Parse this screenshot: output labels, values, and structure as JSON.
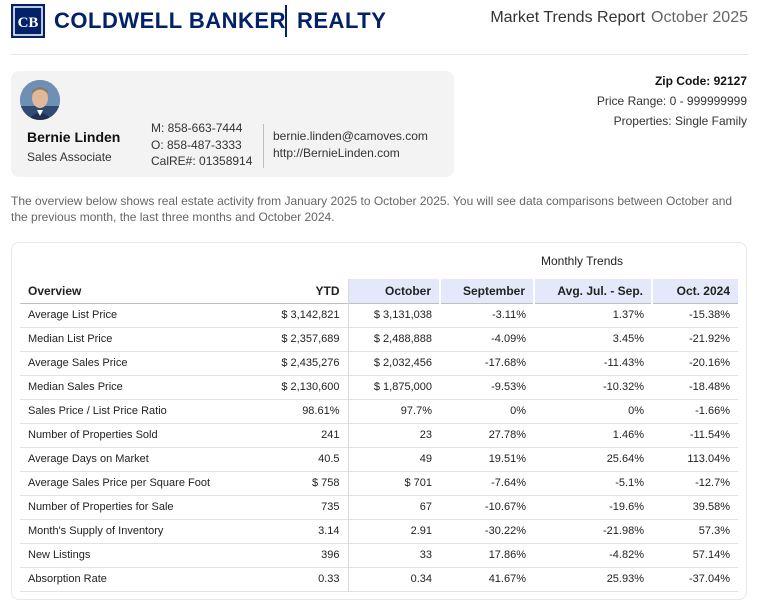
{
  "brand": {
    "name_part1": "COLDWELL BANKER",
    "name_part2": "REALTY",
    "color": "#012169"
  },
  "report": {
    "title": "Market Trends Report",
    "month": "October 2025"
  },
  "agent": {
    "name": "Bernie Linden",
    "title": "Sales Associate",
    "mobile": "M: 858-663-7444",
    "office": "O: 858-487-3333",
    "license": "CalRE#: 01358914",
    "email": "bernie.linden@camoves.com",
    "website": "http://BernieLinden.com"
  },
  "filters": {
    "zip": "Zip Code: 92127",
    "price_range": "Price Range: 0 - 999999999",
    "properties": "Properties: Single Family"
  },
  "overview_text": "The overview below shows real estate activity from January 2025 to October 2025. You will see data comparisons between October and the previous month, the last three months and October 2024.",
  "table": {
    "group_label": "Monthly Trends",
    "headers": {
      "label": "Overview",
      "ytd": "YTD",
      "current": "October",
      "prev": "September",
      "avg": "Avg. Jul. - Sep.",
      "last_year": "Oct. 2024"
    },
    "rows": [
      {
        "label": "Average List Price",
        "ytd": "$ 3,142,821",
        "current": "$ 3,131,038",
        "prev": "-3.11%",
        "avg": "1.37%",
        "last_year": "-15.38%"
      },
      {
        "label": "Median List Price",
        "ytd": "$ 2,357,689",
        "current": "$ 2,488,888",
        "prev": "-4.09%",
        "avg": "3.45%",
        "last_year": "-21.92%"
      },
      {
        "label": "Average Sales Price",
        "ytd": "$ 2,435,276",
        "current": "$ 2,032,456",
        "prev": "-17.68%",
        "avg": "-11.43%",
        "last_year": "-20.16%"
      },
      {
        "label": "Median Sales Price",
        "ytd": "$ 2,130,600",
        "current": "$ 1,875,000",
        "prev": "-9.53%",
        "avg": "-10.32%",
        "last_year": "-18.48%"
      },
      {
        "label": "Sales Price / List Price Ratio",
        "ytd": "98.61%",
        "current": "97.7%",
        "prev": "0%",
        "avg": "0%",
        "last_year": "-1.66%"
      },
      {
        "label": "Number of Properties Sold",
        "ytd": "241",
        "current": "23",
        "prev": "27.78%",
        "avg": "1.46%",
        "last_year": "-11.54%"
      },
      {
        "label": "Average Days on Market",
        "ytd": "40.5",
        "current": "49",
        "prev": "19.51%",
        "avg": "25.64%",
        "last_year": "113.04%"
      },
      {
        "label": "Average Sales Price per Square Foot",
        "ytd": "$ 758",
        "current": "$ 701",
        "prev": "-7.64%",
        "avg": "-5.1%",
        "last_year": "-12.7%"
      },
      {
        "label": "Number of Properties for Sale",
        "ytd": "735",
        "current": "67",
        "prev": "-10.67%",
        "avg": "-19.6%",
        "last_year": "39.58%"
      },
      {
        "label": "Month's Supply of Inventory",
        "ytd": "3.14",
        "current": "2.91",
        "prev": "-30.22%",
        "avg": "-21.98%",
        "last_year": "57.3%"
      },
      {
        "label": "New Listings",
        "ytd": "396",
        "current": "33",
        "prev": "17.86%",
        "avg": "-4.82%",
        "last_year": "57.14%"
      },
      {
        "label": "Absorption Rate",
        "ytd": "0.33",
        "current": "0.34",
        "prev": "41.67%",
        "avg": "25.93%",
        "last_year": "-37.04%"
      }
    ]
  },
  "colors": {
    "positive": "#22b04b",
    "negative": "#e0243d",
    "column_highlight": "#e3e9fb"
  }
}
